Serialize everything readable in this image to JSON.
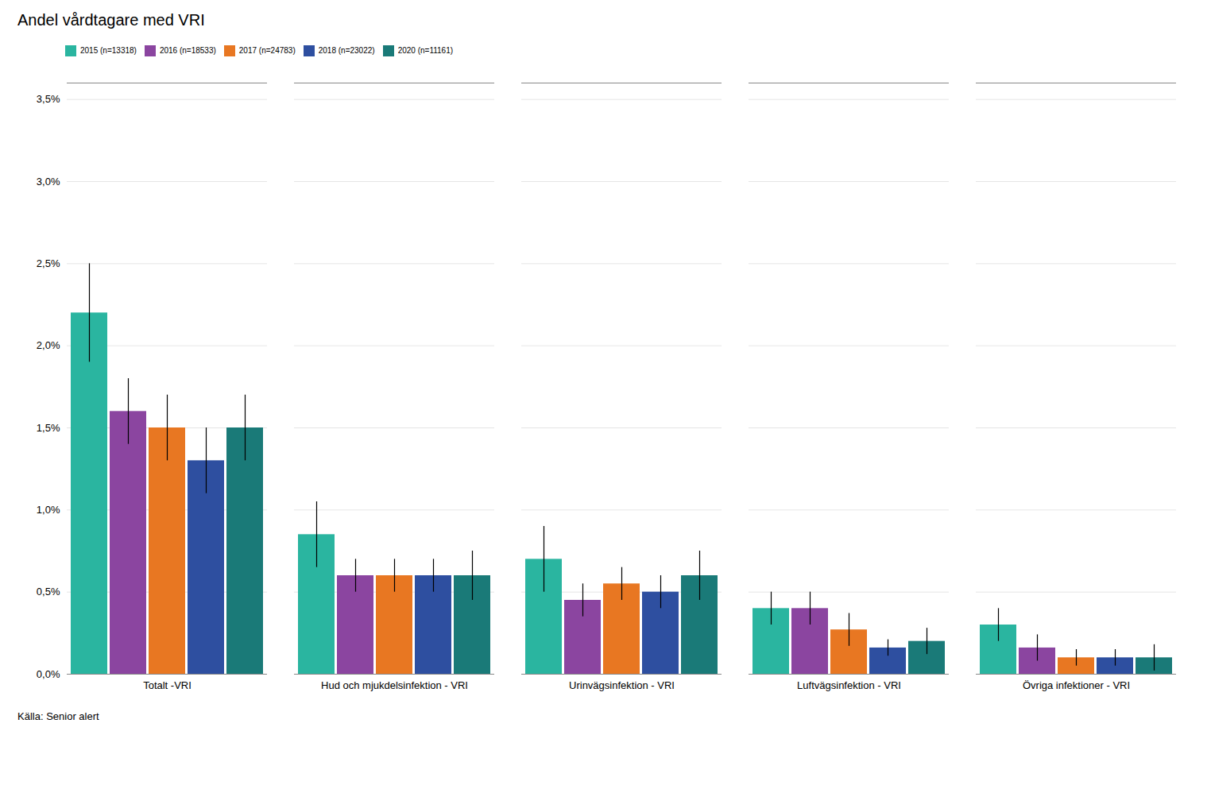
{
  "chart_data": {
    "type": "bar",
    "title": "Andel vårdtagare med VRI",
    "caption": "Källa: Senior alert",
    "categories": [
      "Totalt -VRI",
      "Hud och mjukdelsinfektion - VRI",
      "Urinvägsinfektion - VRI",
      "Luftvägsinfektion - VRI",
      "Övriga infektioner - VRI"
    ],
    "series": [
      {
        "name": "2015 (n=13318)",
        "color": "#2ab5a0",
        "values": [
          0.022,
          0.0085,
          0.007,
          0.004,
          0.003
        ],
        "errors": [
          0.003,
          0.002,
          0.002,
          0.001,
          0.001
        ]
      },
      {
        "name": "2016 (n=18533)",
        "color": "#8b45a0",
        "values": [
          0.016,
          0.006,
          0.0045,
          0.004,
          0.0016
        ],
        "errors": [
          0.002,
          0.001,
          0.001,
          0.001,
          0.0008
        ]
      },
      {
        "name": "2017 (n=24783)",
        "color": "#e87722",
        "values": [
          0.015,
          0.006,
          0.0055,
          0.0027,
          0.001
        ],
        "errors": [
          0.002,
          0.001,
          0.001,
          0.001,
          0.0005
        ]
      },
      {
        "name": "2018 (n=23022)",
        "color": "#2e4fa0",
        "values": [
          0.013,
          0.006,
          0.005,
          0.0016,
          0.001
        ],
        "errors": [
          0.002,
          0.001,
          0.001,
          0.0005,
          0.0005
        ]
      },
      {
        "name": "2020 (n=11161)",
        "color": "#1a7a78",
        "values": [
          0.015,
          0.006,
          0.006,
          0.002,
          0.001
        ],
        "errors": [
          0.002,
          0.0015,
          0.0015,
          0.0008,
          0.0008
        ]
      }
    ],
    "ylim": [
      0,
      0.036
    ],
    "yticks": [
      {
        "value": 0.0,
        "label": "0,0%"
      },
      {
        "value": 0.005,
        "label": "0,5%"
      },
      {
        "value": 0.01,
        "label": "1,0%"
      },
      {
        "value": 0.015,
        "label": "1,5%"
      },
      {
        "value": 0.02,
        "label": "2,0%"
      },
      {
        "value": 0.025,
        "label": "2,5%"
      },
      {
        "value": 0.03,
        "label": "3,0%"
      },
      {
        "value": 0.035,
        "label": "3,5%"
      }
    ],
    "grid": true,
    "legend": "top"
  }
}
